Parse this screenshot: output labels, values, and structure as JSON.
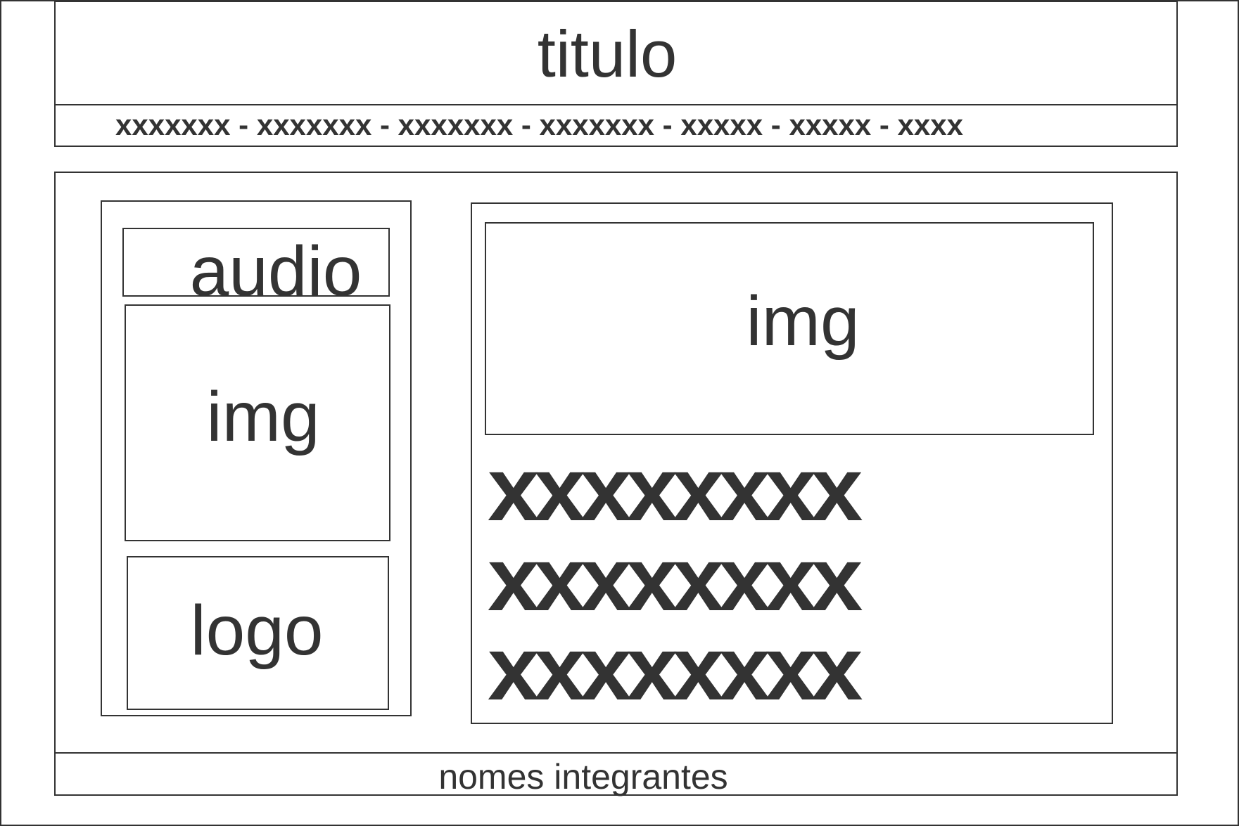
{
  "header": {
    "title": "titulo",
    "nav": "xxxxxxx - xxxxxxx - xxxxxxx - xxxxxxx - xxxxx - xxxxx  - xxxx"
  },
  "left_column": {
    "audio_label": "audio",
    "img_label": "img",
    "logo_label": "logo"
  },
  "right_column": {
    "img_label": "img",
    "text_lines": [
      "xxxxxxxx",
      "xxxxxxxx",
      "xxxxxxxx"
    ]
  },
  "footer": {
    "label": "nomes integrantes"
  }
}
